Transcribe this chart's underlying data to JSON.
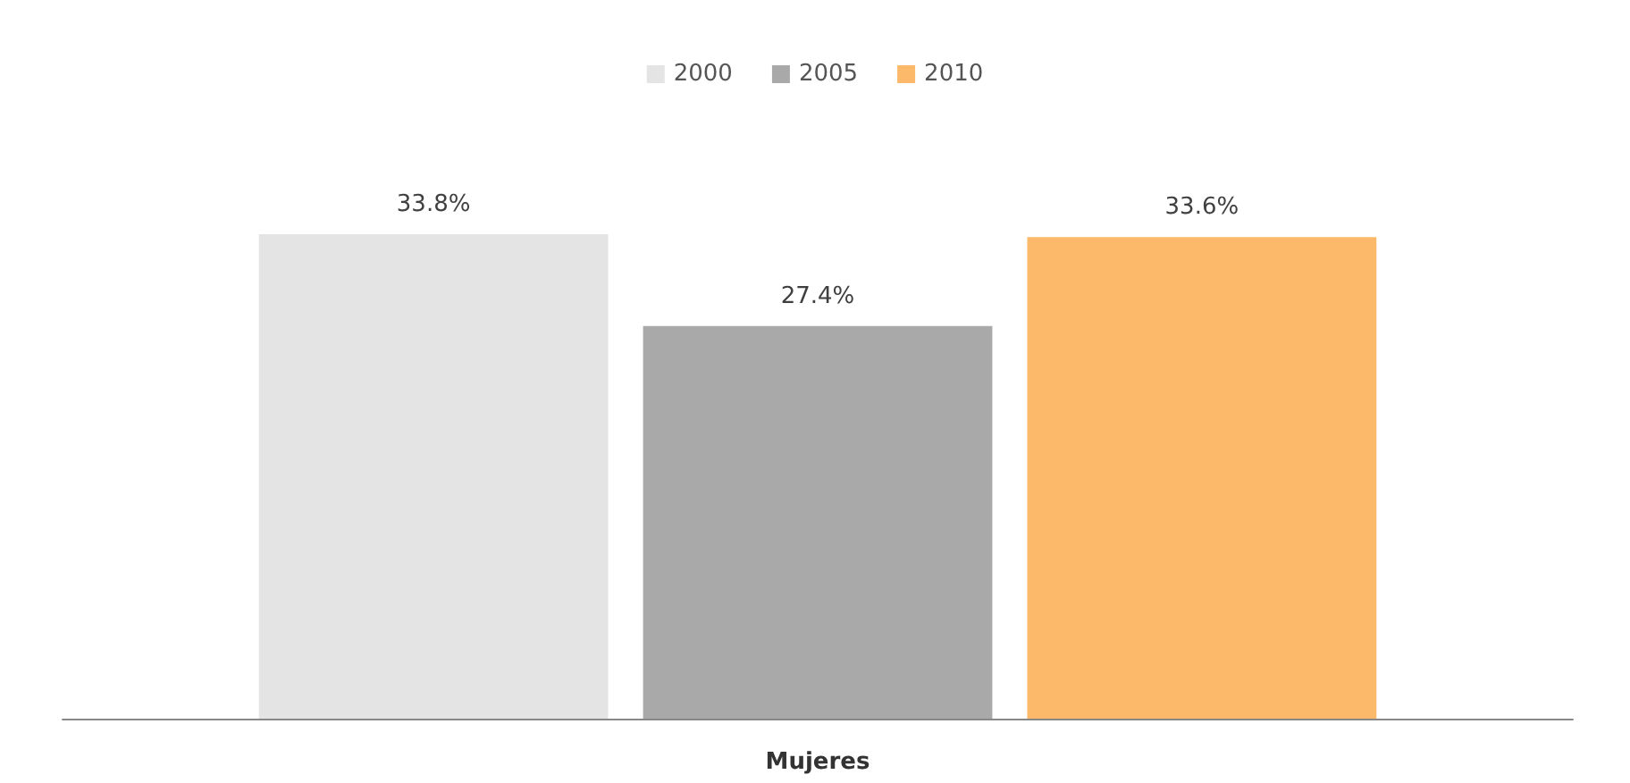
{
  "chart_data": {
    "type": "bar",
    "xlabel": "Mujeres",
    "categories": [
      null
    ],
    "legend": "top",
    "series": [
      {
        "name": "2000",
        "color": "#e4e4e4",
        "values": [
          33.8
        ],
        "value_labels": [
          "33.8%"
        ]
      },
      {
        "name": "2005",
        "color": "#a9a9a9",
        "values": [
          27.4
        ],
        "value_labels": [
          "27.4%"
        ]
      },
      {
        "name": "2010",
        "color": "#fdb96a",
        "values": [
          33.6
        ],
        "value_labels": [
          "33.6%"
        ]
      }
    ]
  }
}
